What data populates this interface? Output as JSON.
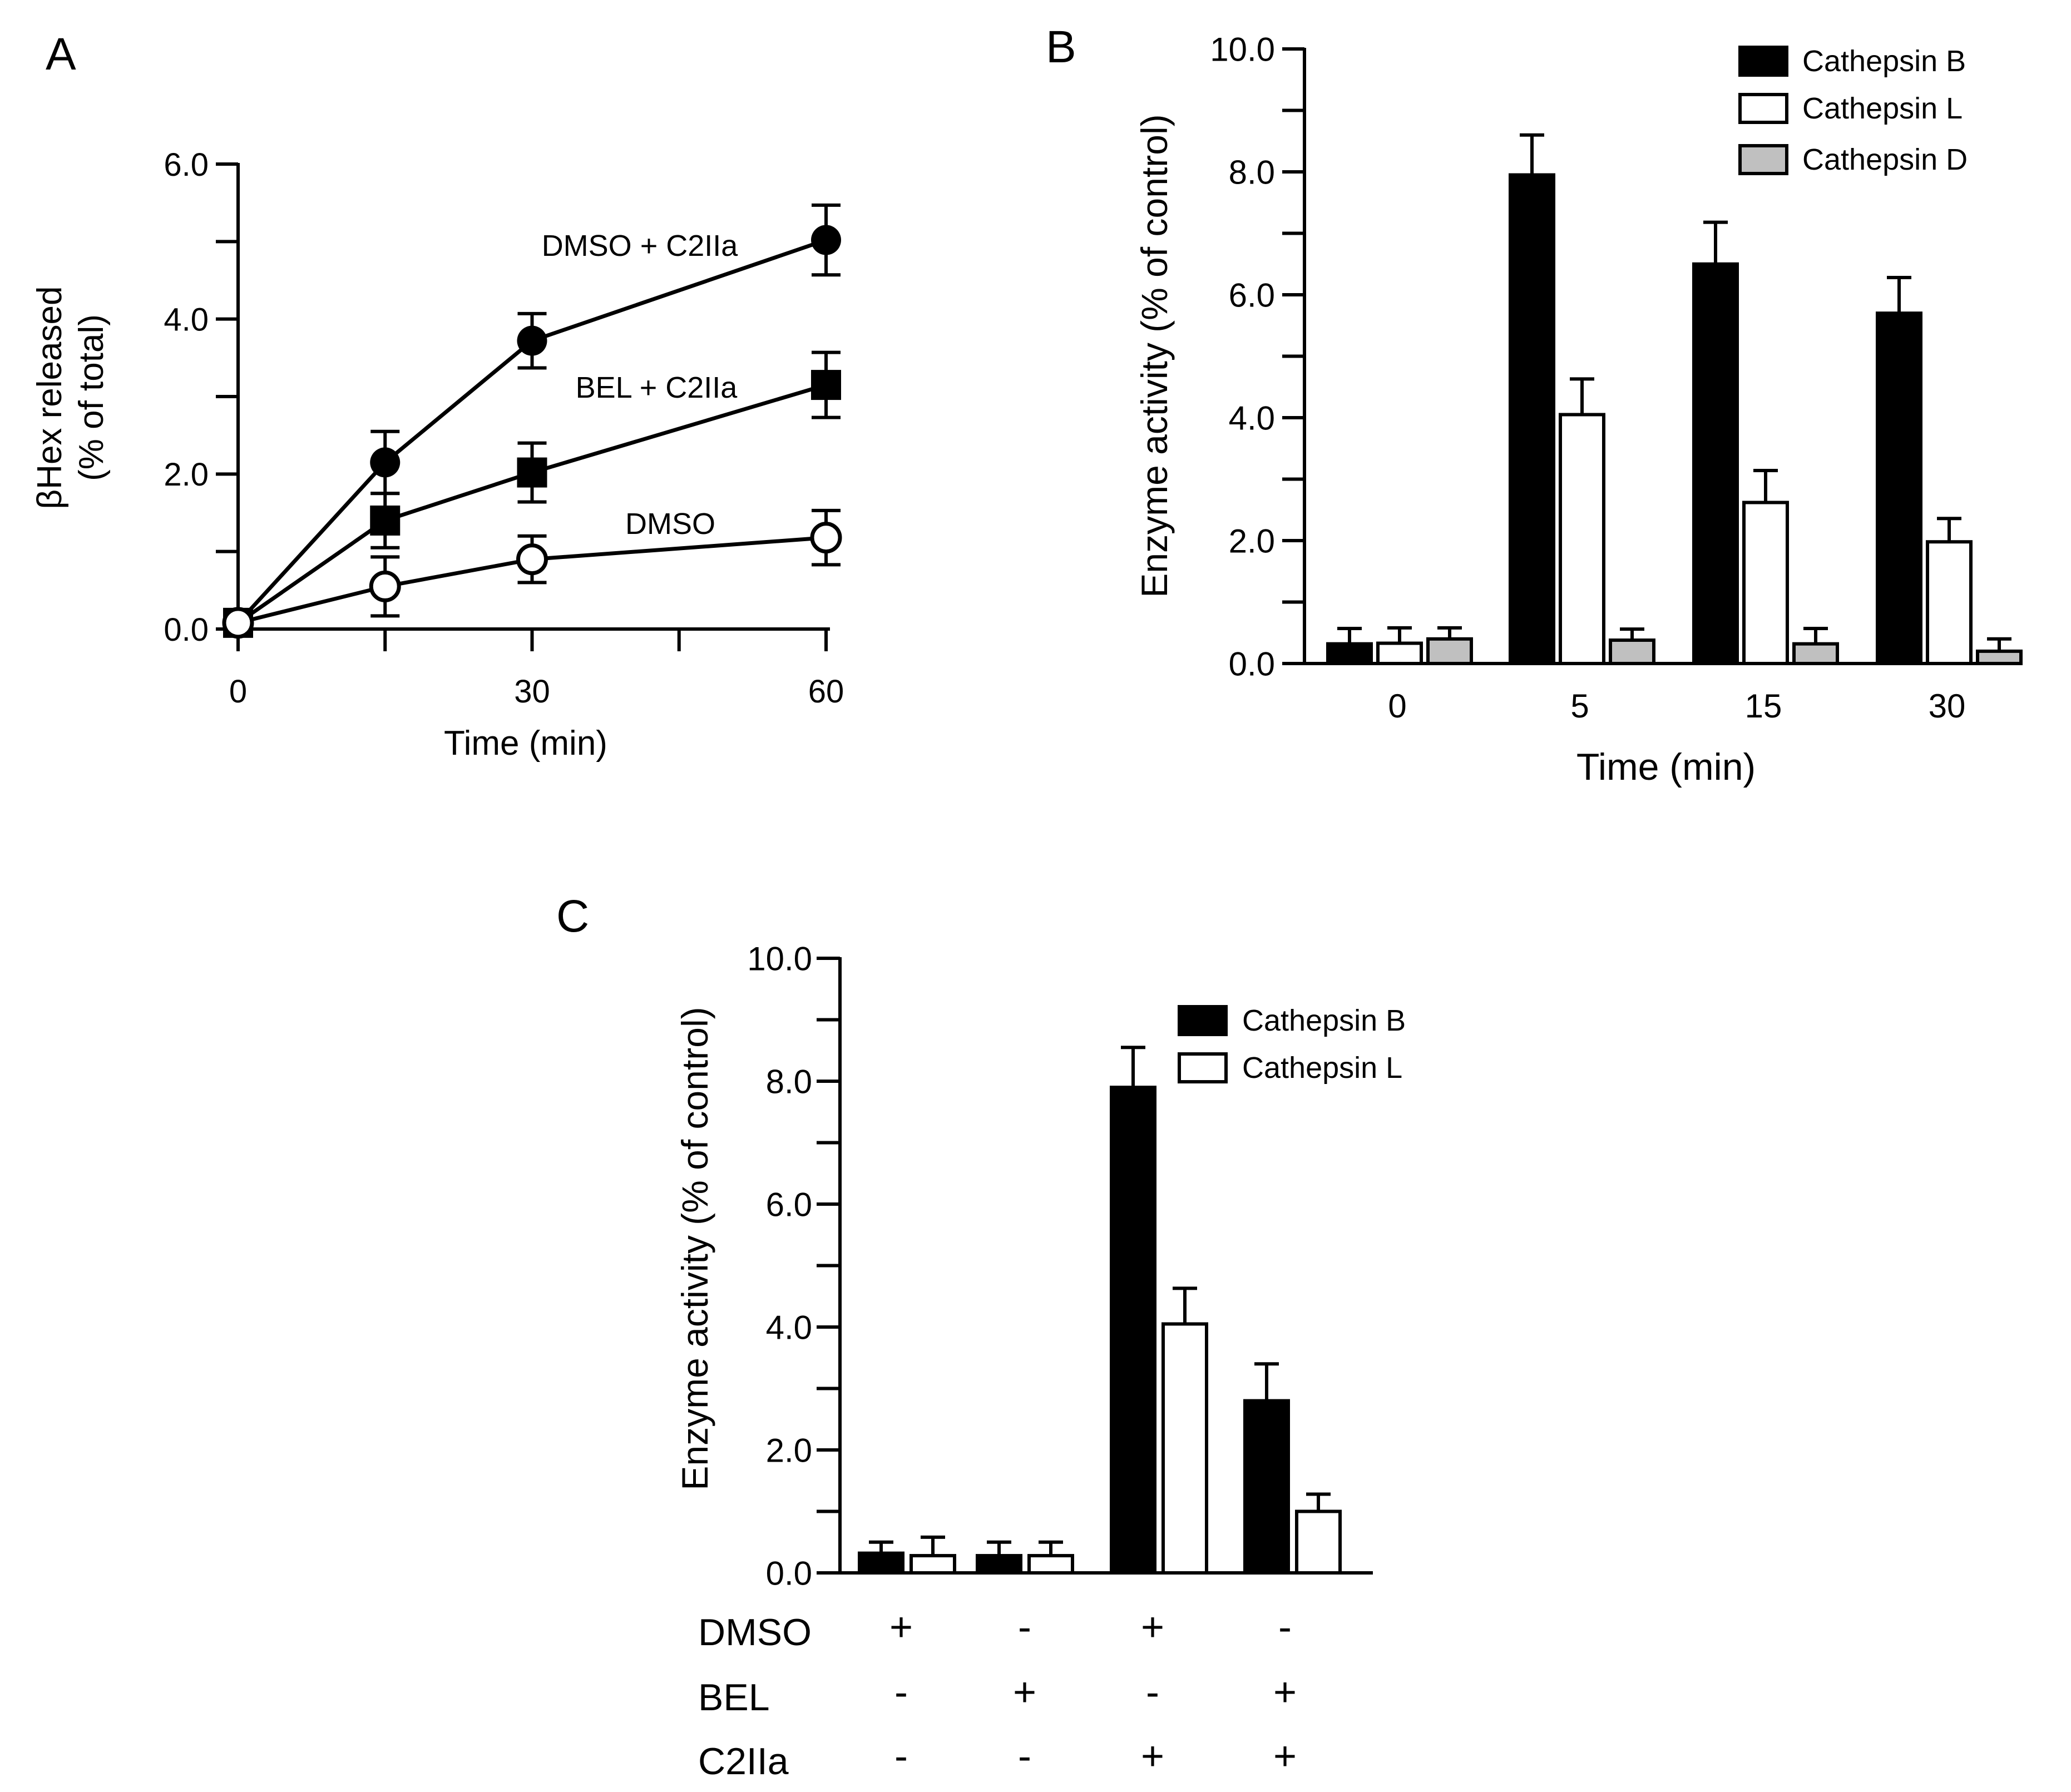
{
  "colors": {
    "black": "#000000",
    "white": "#ffffff",
    "gray": "#c0c0c0"
  },
  "chart_data": [
    {
      "panel": "A",
      "type": "line",
      "xlabel": "Time  (min)",
      "ylabel_line1": "βHex released",
      "ylabel_line2": "(% of total)",
      "xlim": [
        0,
        60
      ],
      "ylim": [
        0,
        6
      ],
      "x_ticks": [
        0,
        30,
        60
      ],
      "x_minor_ticks": [
        15,
        45
      ],
      "x_tick_labels": [
        "0",
        "30",
        "60"
      ],
      "y_ticks": [
        0,
        2,
        4,
        6
      ],
      "y_minor_ticks": [
        1,
        3,
        5
      ],
      "y_tick_labels": [
        "0.0",
        "2.0",
        "4.0",
        "6.0"
      ],
      "series": [
        {
          "name": "DMSO + C2IIa",
          "label": "DMSO + C2IIa",
          "marker": "filled-circle",
          "x": [
            0,
            15,
            30,
            60
          ],
          "y": [
            0.08,
            2.15,
            3.72,
            5.02
          ],
          "err": [
            0.05,
            0.4,
            0.35,
            0.45
          ]
        },
        {
          "name": "BEL + C2IIa",
          "label": "BEL  + C2IIa",
          "marker": "filled-square",
          "x": [
            0,
            15,
            30,
            60
          ],
          "y": [
            0.08,
            1.4,
            2.02,
            3.15
          ],
          "err": [
            0.05,
            0.35,
            0.38,
            0.42
          ]
        },
        {
          "name": "DMSO",
          "label": "DMSO",
          "marker": "open-circle",
          "x": [
            0,
            15,
            30,
            60
          ],
          "y": [
            0.08,
            0.55,
            0.9,
            1.18
          ],
          "err": [
            0.05,
            0.38,
            0.3,
            0.35
          ]
        }
      ]
    },
    {
      "panel": "B",
      "type": "bar",
      "xlabel": "Time  (min)",
      "ylabel": "Enzyme activity (% of control)",
      "categories": [
        "0",
        "5",
        "15",
        "30"
      ],
      "ylim": [
        0,
        10
      ],
      "y_ticks": [
        0,
        2,
        4,
        6,
        8,
        10
      ],
      "y_minor_ticks": [
        1,
        3,
        5,
        7,
        9
      ],
      "y_tick_labels": [
        "0.0",
        "2.0",
        "4.0",
        "6.0",
        "8.0",
        "10.0"
      ],
      "legend": [
        "Cathepsin  B",
        "Cathepsin  L",
        "Cathepsin  D"
      ],
      "series": [
        {
          "name": "Cathepsin B",
          "fill": "black",
          "values": [
            0.32,
            7.95,
            6.5,
            5.7
          ],
          "err": [
            0.25,
            0.65,
            0.68,
            0.58
          ]
        },
        {
          "name": "Cathepsin L",
          "fill": "white",
          "values": [
            0.33,
            4.05,
            2.62,
            1.98
          ],
          "err": [
            0.25,
            0.58,
            0.52,
            0.38
          ]
        },
        {
          "name": "Cathepsin D",
          "fill": "gray",
          "values": [
            0.4,
            0.38,
            0.32,
            0.2
          ],
          "err": [
            0.18,
            0.18,
            0.25,
            0.2
          ]
        }
      ]
    },
    {
      "panel": "C",
      "type": "bar",
      "ylabel": "Enzyme activity (% of control)",
      "ylim": [
        0,
        10
      ],
      "y_ticks": [
        0,
        2,
        4,
        6,
        8,
        10
      ],
      "y_minor_ticks": [
        1,
        3,
        5,
        7,
        9
      ],
      "y_tick_labels": [
        "0.0",
        "2.0",
        "4.0",
        "6.0",
        "8.0",
        "10.0"
      ],
      "legend": [
        "Cathepsin  B",
        "Cathepsin  L"
      ],
      "conditions": [
        {
          "name": "DMSO",
          "signs": [
            "+",
            "-",
            "+",
            "-"
          ]
        },
        {
          "name": "BEL",
          "signs": [
            "-",
            "+",
            "-",
            "+"
          ]
        },
        {
          "name": "C2IIa",
          "signs": [
            "-",
            "-",
            "+",
            "+"
          ]
        }
      ],
      "series": [
        {
          "name": "Cathepsin B",
          "fill": "black",
          "values": [
            0.32,
            0.28,
            7.9,
            2.8
          ],
          "err": [
            0.18,
            0.22,
            0.65,
            0.6
          ]
        },
        {
          "name": "Cathepsin L",
          "fill": "white",
          "values": [
            0.28,
            0.28,
            4.05,
            1.0
          ],
          "err": [
            0.3,
            0.22,
            0.58,
            0.28
          ]
        }
      ]
    }
  ]
}
